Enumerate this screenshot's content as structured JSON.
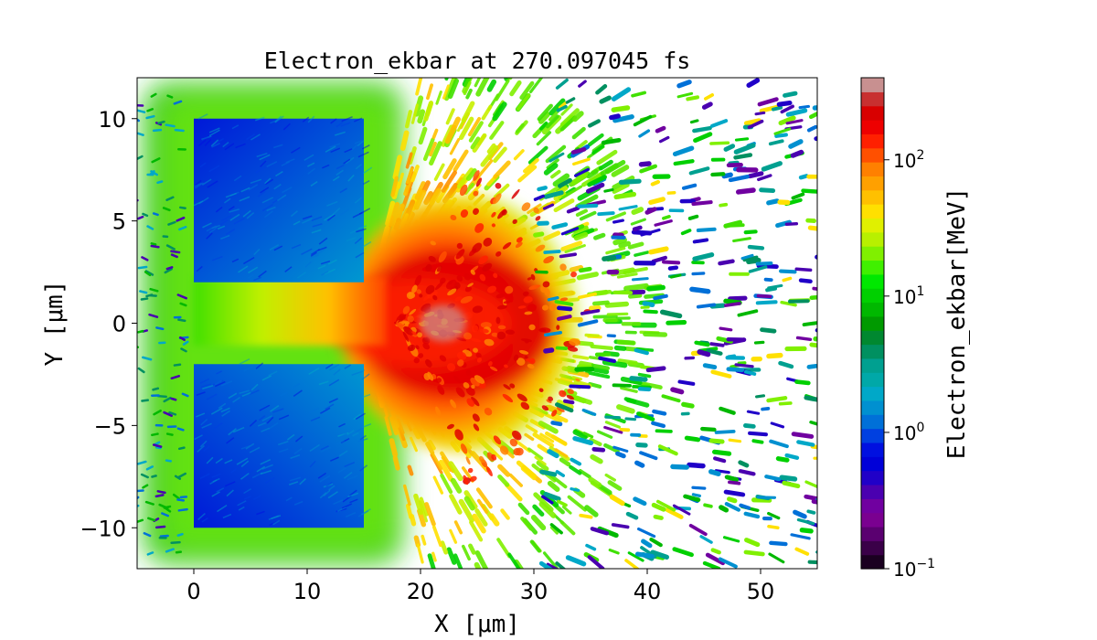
{
  "chart_data": {
    "type": "heatmap",
    "title": "Electron_ekbar at 270.097045 fs",
    "xlabel": "X  [μm]",
    "ylabel": "Y  [μm]",
    "xlim": [
      -5,
      55
    ],
    "ylim": [
      -12,
      12
    ],
    "x_ticks": [
      0,
      10,
      20,
      30,
      40,
      50
    ],
    "y_ticks": [
      10,
      5,
      0,
      -5,
      -10
    ],
    "x_tick_labels": [
      "0",
      "10",
      "20",
      "30",
      "40",
      "50"
    ],
    "y_tick_labels": [
      "10",
      "5",
      "0",
      "−5",
      "−10"
    ],
    "colorbar": {
      "label": "Electron_ekbar[MeV]",
      "scale": "log",
      "range": [
        0.1,
        400
      ],
      "ticks": [
        0.1,
        1,
        10,
        100
      ],
      "tick_bases": [
        "10",
        "10",
        "10",
        "10"
      ],
      "tick_exponents": [
        "−1",
        "0",
        "1",
        "2"
      ],
      "colors": [
        "#1a0020",
        "#3a0048",
        "#5a0070",
        "#7a0090",
        "#7000a0",
        "#4a00b0",
        "#2000c8",
        "#0000d8",
        "#0010e0",
        "#0040e0",
        "#0070d8",
        "#0090d0",
        "#00a8c8",
        "#00a8a8",
        "#00a090",
        "#009060",
        "#008830",
        "#009a00",
        "#00b800",
        "#00d000",
        "#00e800",
        "#40f000",
        "#80f000",
        "#b8f000",
        "#e0f000",
        "#ffe000",
        "#ffc000",
        "#ffa000",
        "#ff8000",
        "#ff5000",
        "#ff2000",
        "#ee0000",
        "#d80000",
        "#c83030",
        "#c89090"
      ]
    },
    "regions": [
      {
        "name": "upper-target-block",
        "x": [
          0,
          15
        ],
        "y": [
          2,
          10
        ],
        "ekbar_MeV": 0.6
      },
      {
        "name": "lower-target-block",
        "x": [
          0,
          15
        ],
        "y": [
          -10,
          -2
        ],
        "ekbar_MeV": 0.6
      },
      {
        "name": "hot-electron-plume",
        "x": [
          15,
          36
        ],
        "y": [
          -6,
          6
        ],
        "ekbar_MeV": 150
      }
    ]
  }
}
